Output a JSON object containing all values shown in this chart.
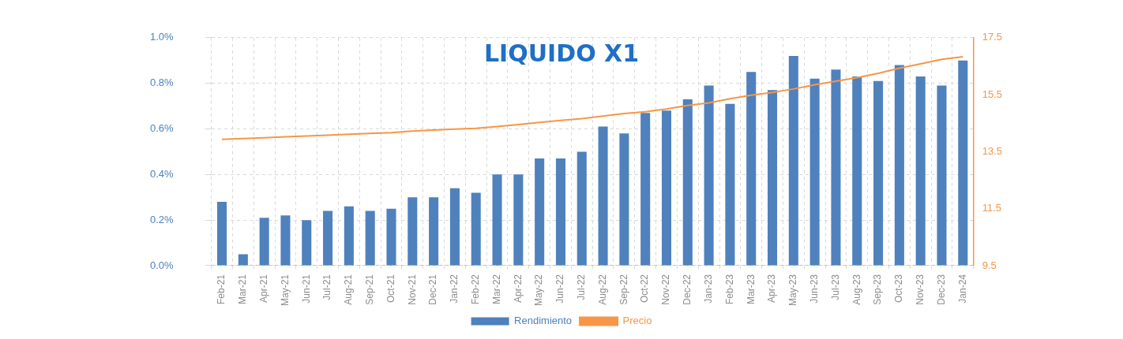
{
  "chart_data": {
    "type": "bar",
    "title": "LIQUIDO X1",
    "categories": [
      "Feb-21",
      "Mar-21",
      "Apr-21",
      "May-21",
      "Jun-21",
      "Jul-21",
      "Aug-21",
      "Sep-21",
      "Oct-21",
      "Nov-21",
      "Dec-21",
      "Jan-22",
      "Feb-22",
      "Mar-22",
      "Apr-22",
      "May-22",
      "Jun-22",
      "Jul-22",
      "Aug-22",
      "Sep-22",
      "Oct-22",
      "Nov-22",
      "Dec-22",
      "Jan-23",
      "Feb-23",
      "Mar-23",
      "Apr-23",
      "May-23",
      "Jun-23",
      "Jul-23",
      "Aug-23",
      "Sep-23",
      "Oct-23",
      "Nov-23",
      "Dec-23",
      "Jan-24"
    ],
    "series": [
      {
        "name": "Rendimiento",
        "color": "#4f81bd",
        "values": [
          0.28,
          0.05,
          0.21,
          0.22,
          0.2,
          0.24,
          0.26,
          0.24,
          0.25,
          0.3,
          0.3,
          0.34,
          0.32,
          0.4,
          0.4,
          0.47,
          0.47,
          0.5,
          0.61,
          0.58,
          0.67,
          0.68,
          0.73,
          0.79,
          0.71,
          0.85,
          0.77,
          0.92,
          0.82,
          0.86,
          0.83,
          0.81,
          0.88,
          0.83,
          0.79,
          0.9
        ]
      },
      {
        "name": "Precio",
        "type": "line",
        "axis": "y2",
        "color": "#f79646",
        "values": [
          13.93,
          13.96,
          13.99,
          14.02,
          14.05,
          14.08,
          14.11,
          14.14,
          14.17,
          14.22,
          14.26,
          14.29,
          14.32,
          14.38,
          14.45,
          14.53,
          14.6,
          14.66,
          14.75,
          14.84,
          14.9,
          15.0,
          15.12,
          15.21,
          15.36,
          15.48,
          15.58,
          15.7,
          15.85,
          15.97,
          16.1,
          16.25,
          16.43,
          16.58,
          16.74,
          16.83
        ]
      }
    ],
    "ylim": [
      0,
      1.0
    ],
    "yticks": [
      {
        "value": 0,
        "label": "0.0%"
      },
      {
        "value": 0.2,
        "label": "0.2%"
      },
      {
        "value": 0.4,
        "label": "0.4%"
      },
      {
        "value": 0.6,
        "label": "0.6%"
      },
      {
        "value": 0.8,
        "label": "0.8%"
      },
      {
        "value": 1.0,
        "label": "1.0%"
      }
    ],
    "y2lim": [
      9.5,
      17.5
    ],
    "y2ticks": [
      9.5,
      11.5,
      13.5,
      15.5,
      17.5
    ],
    "grid": true,
    "legend": "bottom",
    "marker": "none"
  }
}
